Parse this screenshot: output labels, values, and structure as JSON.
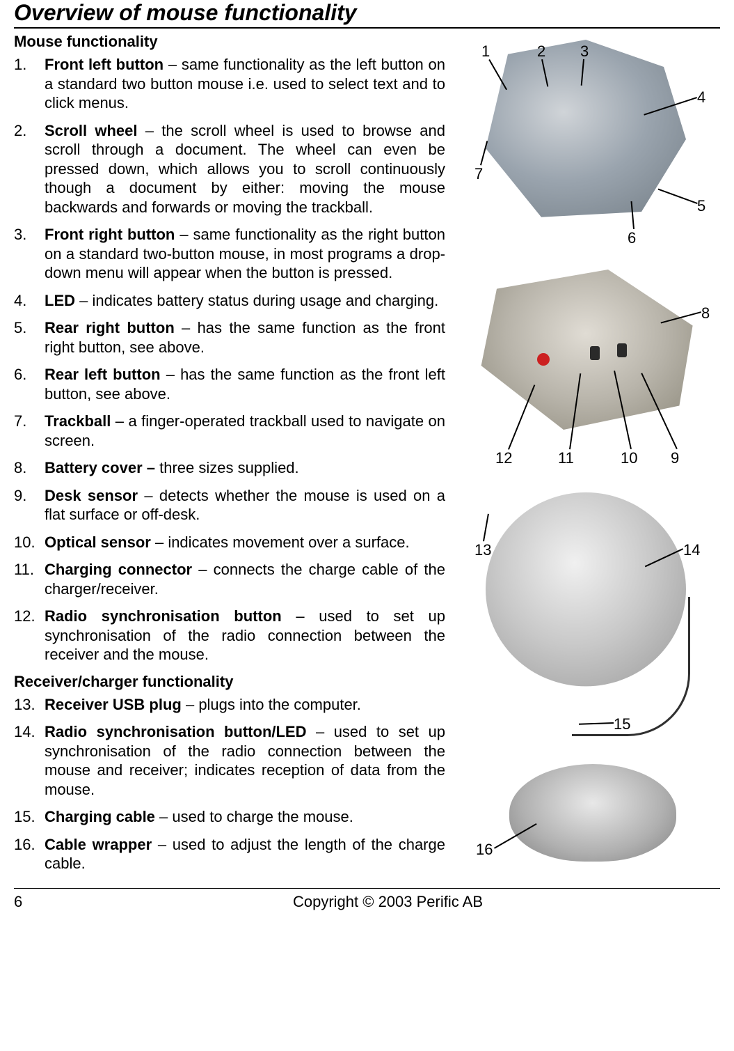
{
  "title": "Overview of mouse functionality",
  "sections": {
    "mouse": {
      "heading": "Mouse functionality",
      "items": [
        {
          "n": "1.",
          "term": "Front left button",
          "sep": " – ",
          "desc": "same functionality as the left button on a standard two button mouse i.e. used to select text and to click menus."
        },
        {
          "n": "2.",
          "term": "Scroll wheel",
          "sep": " – ",
          "desc": "the scroll wheel is used to browse and scroll through a document. The wheel can even be pressed down, which allows you to scroll continuously though a document by either: moving the mouse backwards and forwards or moving the trackball."
        },
        {
          "n": "3.",
          "term": "Front right button",
          "sep": " – ",
          "desc": "same functionality as the right button on a standard two-button mouse, in most programs a drop-down menu will appear when the button is pressed."
        },
        {
          "n": "4.",
          "term": "LED",
          "sep": " – ",
          "desc": "indicates battery status during usage and charging."
        },
        {
          "n": "5.",
          "term": "Rear right button",
          "sep": " – ",
          "desc": "has the same function as the front right button, see above."
        },
        {
          "n": "6.",
          "term": "Rear left button",
          "sep": " – ",
          "desc": "has the same function as the front left button, see above."
        },
        {
          "n": "7.",
          "term": "Trackball",
          "sep": " – ",
          "desc": "a finger-operated trackball used to navigate on screen."
        },
        {
          "n": "8.",
          "term": "Battery cover – ",
          "sep": "",
          "desc": "three sizes supplied."
        },
        {
          "n": "9.",
          "term": "Desk sensor",
          "sep": " – ",
          "desc": "detects whether the mouse is used on a flat surface or off-desk."
        },
        {
          "n": "10.",
          "term": "Optical sensor",
          "sep": " – ",
          "desc": "indicates movement over a surface."
        },
        {
          "n": "11.",
          "term": "Charging connector",
          "sep": " – ",
          "desc": "connects the charge cable of the charger/receiver."
        },
        {
          "n": "12.",
          "term": "Radio synchronisation button",
          "sep": " – ",
          "desc": "used to set up synchronisation of the radio connection between the receiver and the mouse."
        }
      ]
    },
    "receiver": {
      "heading": "Receiver/charger functionality",
      "items": [
        {
          "n": "13.",
          "term": "Receiver USB plug",
          "sep": " – ",
          "desc": "plugs into the computer."
        },
        {
          "n": "14.",
          "term": "Radio synchronisation button/LED",
          "sep": " – ",
          "desc": "used to set up synchronisation of the radio connection between the mouse and receiver; indicates reception of data from the mouse."
        },
        {
          "n": "15.",
          "term": "Charging cable",
          "sep": " – ",
          "desc": "used to charge the mouse."
        },
        {
          "n": "16.",
          "term": "Cable wrapper",
          "sep": " – ",
          "desc": "used to adjust the length of the charge cable."
        }
      ]
    }
  },
  "figures": {
    "fig1": {
      "callouts": [
        "1",
        "2",
        "3",
        "4",
        "5",
        "6",
        "7"
      ]
    },
    "fig2": {
      "callouts": [
        "8",
        "9",
        "10",
        "11",
        "12"
      ]
    },
    "fig3": {
      "callouts": [
        "13",
        "14",
        "15"
      ]
    },
    "fig4": {
      "callouts": [
        "16"
      ]
    }
  },
  "footer": {
    "page": "6",
    "copyright": "Copyright © 2003 Perific AB"
  },
  "style": {
    "body_font_size": 22,
    "title_font_size": 32,
    "text_color": "#000000",
    "bg_color": "#ffffff",
    "accent_red": "#cc2020"
  }
}
